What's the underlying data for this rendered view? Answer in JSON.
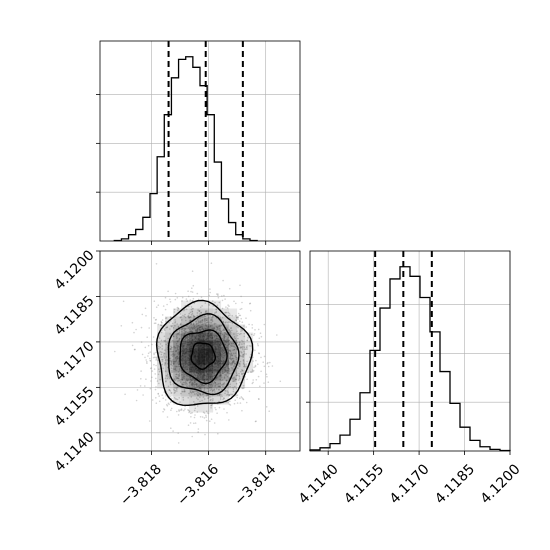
{
  "chart_data": [
    {
      "type": "histogram",
      "panel": "x-marginal",
      "variable_axis": "x",
      "xlim": [
        -3.8198,
        -3.8128
      ],
      "bins": {
        "edges_start": -3.8193,
        "bin_width": 0.00025,
        "counts": [
          1,
          4,
          12,
          22,
          45,
          90,
          160,
          240,
          310,
          345,
          350,
          330,
          295,
          240,
          150,
          80,
          35,
          12,
          4,
          1
        ]
      },
      "quantile_lines": [
        -3.8174,
        -3.8161,
        -3.8148
      ],
      "xticks": [
        -3.818,
        -3.816,
        -3.814
      ],
      "xtick_labels": [],
      "ytick_labels": [],
      "grid": true
    },
    {
      "type": "scatter-density",
      "panel": "joint",
      "xlim": [
        -3.8198,
        -3.8128
      ],
      "ylim": [
        4.1134,
        4.12
      ],
      "center": {
        "x": -3.8162,
        "y": 4.11655
      },
      "sigma": {
        "x": 0.00082,
        "y": 0.00085
      },
      "contour_levels_sigma": [
        0.5,
        1.0,
        1.5,
        2.0
      ],
      "n_points": 2600,
      "xticks": [
        -3.818,
        -3.816,
        -3.814
      ],
      "xtick_labels": [
        "−3.818",
        "−3.816",
        "−3.814"
      ],
      "yticks": [
        4.114,
        4.1155,
        4.117,
        4.1185,
        4.12
      ],
      "ytick_labels": [
        "4.1140",
        "4.1155",
        "4.1170",
        "4.1185",
        "4.1200"
      ],
      "grid": true
    },
    {
      "type": "histogram",
      "panel": "y-marginal",
      "variable_axis": "x",
      "xlim": [
        4.1134,
        4.12
      ],
      "bins": {
        "edges_start": 4.1134,
        "bin_width": 0.00033,
        "counts": [
          2,
          6,
          14,
          30,
          60,
          110,
          190,
          270,
          325,
          348,
          330,
          290,
          225,
          150,
          90,
          45,
          20,
          8,
          3,
          1
        ]
      },
      "quantile_lines": [
        4.11555,
        4.11648,
        4.11742
      ],
      "xticks": [
        4.114,
        4.1155,
        4.117,
        4.1185,
        4.12
      ],
      "xtick_labels": [
        "4.1140",
        "4.1155",
        "4.1170",
        "4.1185",
        "4.1200"
      ],
      "ytick_labels": [],
      "grid": true
    }
  ],
  "colors": {
    "axis": "#000000",
    "grid": "#b0b0b0",
    "hist_line": "#000000",
    "scatter": "#808080",
    "density_dark": "#000000",
    "density_light": "#ffffff"
  }
}
